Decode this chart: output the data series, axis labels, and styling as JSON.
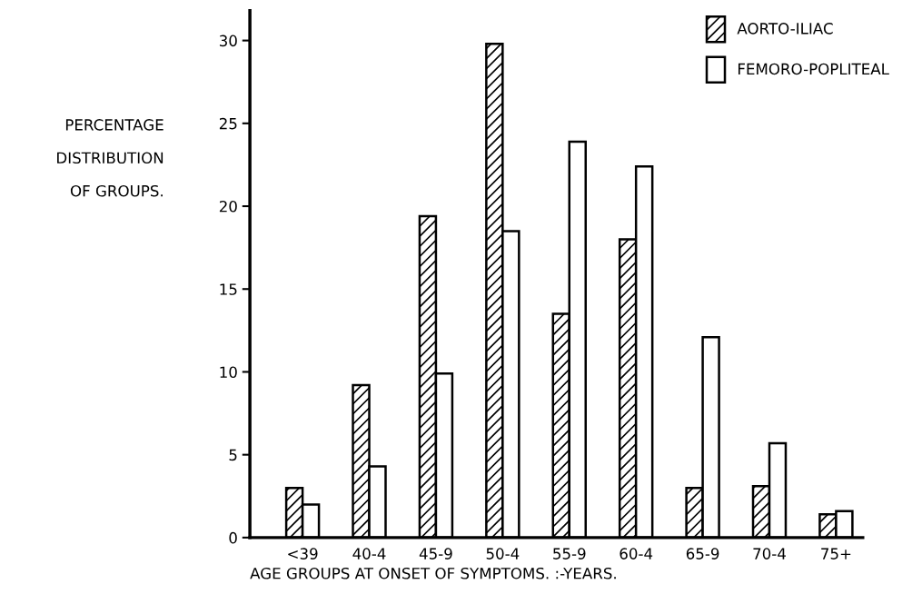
{
  "chart_data": {
    "type": "bar",
    "xlabel": "AGE GROUPS AT ONSET OF SYMPTOMS. :-YEARS.",
    "ylabel": "PERCENTAGE\nDISTRIBUTION\nOF GROUPS.",
    "categories": [
      "<39",
      "40-4",
      "45-9",
      "50-4",
      "55-9",
      "60-4",
      "65-9",
      "70-4",
      "75+"
    ],
    "series": [
      {
        "name": "AORTO-ILIAC",
        "color": "#000000",
        "values": [
          3.0,
          9.2,
          19.4,
          29.8,
          13.5,
          18.0,
          3.0,
          3.1,
          1.4
        ]
      },
      {
        "name": "FEMORO-POPLITEAL",
        "color": "#ffffff",
        "values": [
          2.0,
          4.3,
          9.9,
          18.5,
          23.9,
          22.4,
          12.1,
          5.7,
          1.6
        ]
      }
    ],
    "ylim": [
      0,
      31.8
    ],
    "yticks": [
      0,
      5,
      10,
      15,
      20,
      25,
      30
    ],
    "grid": false,
    "legend": "top right"
  }
}
